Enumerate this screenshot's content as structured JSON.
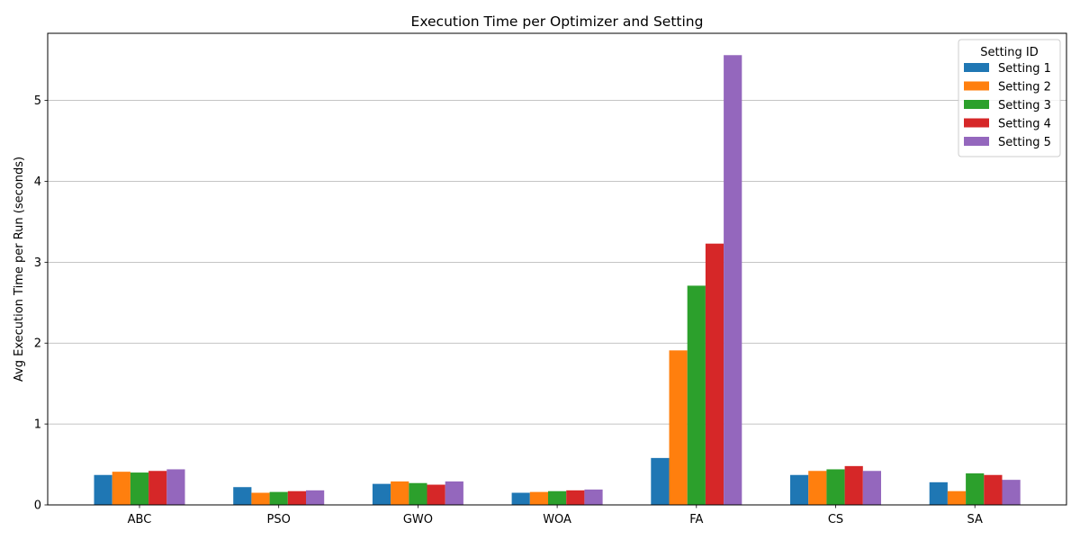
{
  "chart_data": {
    "type": "bar",
    "title": "Execution Time per Optimizer and Setting",
    "xlabel": "",
    "ylabel": "Avg Execution Time per Run (seconds)",
    "categories": [
      "ABC",
      "PSO",
      "GWO",
      "WOA",
      "FA",
      "CS",
      "SA"
    ],
    "ylim": [
      0,
      5.83
    ],
    "yticks": [
      0,
      1,
      2,
      3,
      4,
      5
    ],
    "grid": "y",
    "legend_title": "Setting ID",
    "legend_position": "top-right",
    "series": [
      {
        "name": "Setting 1",
        "color": "#1f77b4",
        "values": [
          0.37,
          0.22,
          0.26,
          0.15,
          0.58,
          0.37,
          0.28
        ]
      },
      {
        "name": "Setting 2",
        "color": "#ff7f0e",
        "values": [
          0.41,
          0.15,
          0.29,
          0.16,
          1.91,
          0.42,
          0.17
        ]
      },
      {
        "name": "Setting 3",
        "color": "#2ca02c",
        "values": [
          0.4,
          0.16,
          0.27,
          0.17,
          2.71,
          0.44,
          0.39
        ]
      },
      {
        "name": "Setting 4",
        "color": "#d62728",
        "values": [
          0.42,
          0.17,
          0.25,
          0.18,
          3.23,
          0.48,
          0.37
        ]
      },
      {
        "name": "Setting 5",
        "color": "#9467bd",
        "values": [
          0.44,
          0.18,
          0.29,
          0.19,
          5.56,
          0.42,
          0.31
        ]
      }
    ]
  }
}
